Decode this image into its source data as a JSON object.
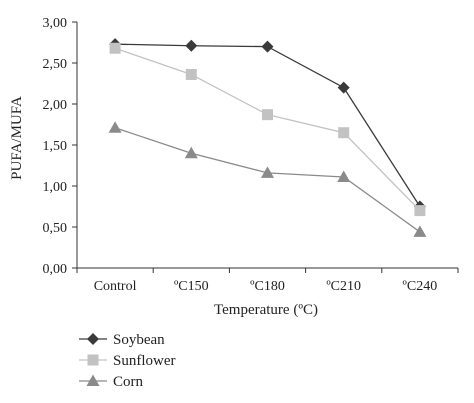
{
  "chart_data": {
    "type": "line",
    "xlabel": "Temperature (ºC)",
    "ylabel": "PUFA/MUFA",
    "categories": [
      "Control",
      "ºC150",
      "ºC180",
      "ºC210",
      "ºC240"
    ],
    "ylim": [
      0,
      3
    ],
    "yticks": [
      "0,00",
      "0,50",
      "1,00",
      "1,50",
      "2,00",
      "2,50",
      "3,00"
    ],
    "ytick_values": [
      0,
      0.5,
      1,
      1.5,
      2,
      2.5,
      3
    ],
    "grid": false,
    "legend_position": "bottom-left",
    "series": [
      {
        "name": "Soybean",
        "values": [
          2.73,
          2.71,
          2.7,
          2.2,
          0.75
        ],
        "color": "#3a3a3a",
        "marker": "diamond"
      },
      {
        "name": "Sunflower",
        "values": [
          2.68,
          2.36,
          1.87,
          1.65,
          0.7
        ],
        "color": "#c2c2c2",
        "marker": "square"
      },
      {
        "name": "Corn",
        "values": [
          1.71,
          1.4,
          1.16,
          1.11,
          0.44
        ],
        "color": "#8a8a8a",
        "marker": "triangle"
      }
    ]
  }
}
